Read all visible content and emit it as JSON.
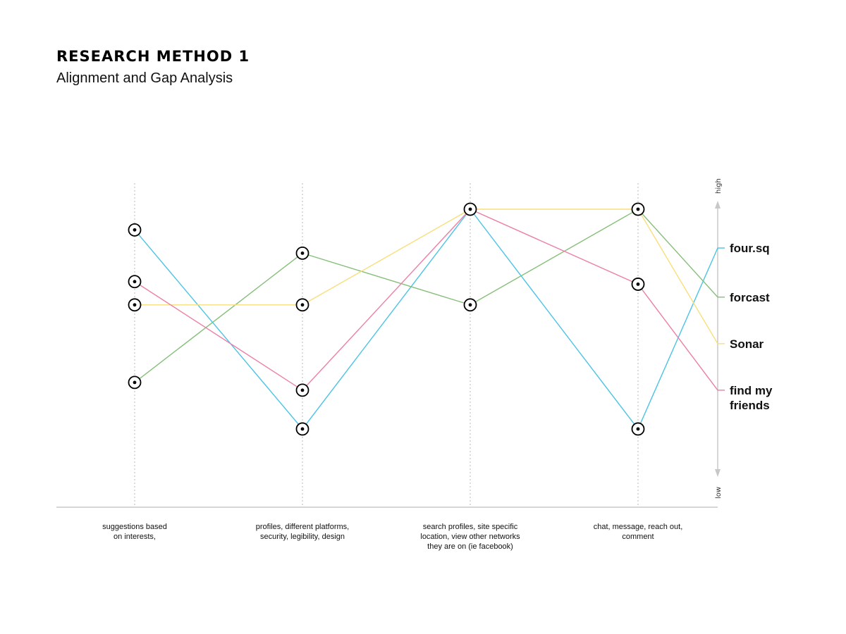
{
  "page": {
    "title": "RESEARCH METHOD 1",
    "subtitle": "Alignment and Gap Analysis"
  },
  "chart_data": {
    "type": "line",
    "categories": [
      [
        "suggestions based",
        "on interests,"
      ],
      [
        "profiles, different platforms,",
        "security, legibility, design"
      ],
      [
        "search profiles, site specific",
        "location, view other networks",
        "they are on (ie facebook)"
      ],
      [
        "chat, message, reach out,",
        "comment"
      ]
    ],
    "axis": {
      "high_label": "high",
      "low_label": "low"
    },
    "ylim": [
      0,
      100
    ],
    "grid": "vertical dotted lines",
    "legend_position": "right",
    "series": [
      {
        "name": "four.sq",
        "color": "#4cc3e6",
        "values": [
          92,
          15,
          100,
          15
        ],
        "end": 85
      },
      {
        "name": "forcast",
        "color": "#86bf7a",
        "values": [
          33,
          83,
          63,
          100
        ],
        "end": 66
      },
      {
        "name": "Sonar",
        "color": "#f8df7d",
        "values": [
          63,
          63,
          100,
          100
        ],
        "end": 48
      },
      {
        "name": "find my friends",
        "legend_lines": [
          "find my",
          "friends"
        ],
        "color": "#ec7fa6",
        "values": [
          72,
          30,
          100,
          71
        ],
        "end": 30
      }
    ]
  }
}
